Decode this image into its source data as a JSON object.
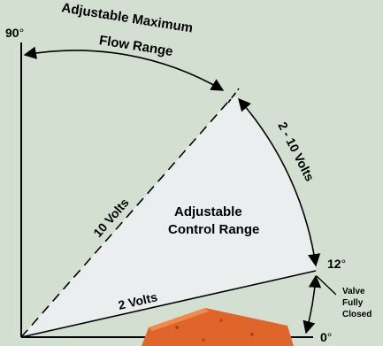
{
  "diagram": {
    "max_flow_label_line1": "Adjustable Maximum",
    "max_flow_label_line2": "Flow Range",
    "angle_90": "90",
    "angle_12": "12",
    "angle_0": "0",
    "degree_symbol": "°",
    "volts_10": "10 Volts",
    "volts_2": "2 Volts",
    "volts_range": "2 - 10 Volts",
    "control_label_line1": "Adjustable",
    "control_label_line2": "Control Range",
    "valve_line1": "Valve",
    "valve_line2": "Fully",
    "valve_line3": "Closed"
  },
  "colors": {
    "background": "#d3e0d1",
    "sector_fill": "#eaeeee",
    "line": "#000000",
    "valve_body": "#e0652a"
  }
}
